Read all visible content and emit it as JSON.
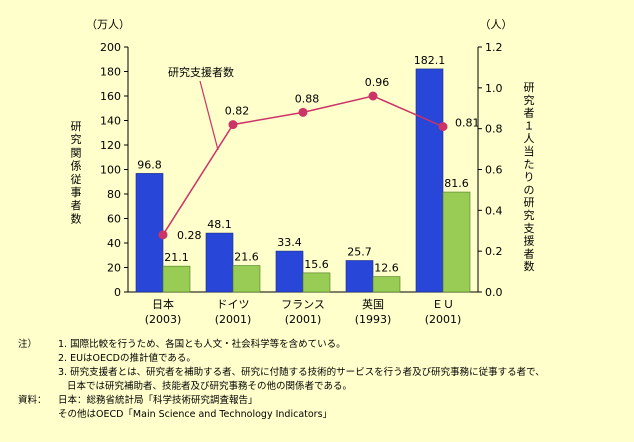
{
  "chart_data": {
    "type": "bar",
    "categories": [
      {
        "name": "日本",
        "year": "(2003)"
      },
      {
        "name": "ドイツ",
        "year": "(2001)"
      },
      {
        "name": "フランス",
        "year": "(2001)"
      },
      {
        "name": "英国",
        "year": "(1993)"
      },
      {
        "name": "ＥＵ",
        "year": "(2001)"
      }
    ],
    "series": [
      {
        "name": "",
        "type": "bar",
        "axis": "left",
        "color": "#2847d8",
        "values": [
          96.8,
          48.1,
          33.4,
          25.7,
          182.1
        ],
        "labels": [
          "96.8",
          "48.1",
          "33.4",
          "25.7",
          "182.1"
        ]
      },
      {
        "name": "",
        "type": "bar",
        "axis": "left",
        "color": "#99cc55",
        "values": [
          21.1,
          21.6,
          15.6,
          12.6,
          81.6
        ],
        "labels": [
          "21.1",
          "21.6",
          "15.6",
          "12.6",
          "81.6"
        ]
      },
      {
        "name": "研究支援者数",
        "type": "line",
        "axis": "right",
        "color": "#cc3366",
        "values": [
          0.28,
          0.82,
          0.88,
          0.96,
          0.81
        ],
        "labels": [
          "0.28",
          "0.82",
          "0.88",
          "0.96",
          "0.81"
        ]
      }
    ],
    "y_left": {
      "unit": "（万人）",
      "label": "研究関係従事者数",
      "ylim": [
        0,
        200
      ],
      "ticks": [
        "0",
        "20",
        "40",
        "60",
        "80",
        "100",
        "120",
        "140",
        "160",
        "180",
        "200"
      ]
    },
    "y_right": {
      "unit": "（人）",
      "label": "研究者１人当たりの研究支援者数",
      "ylim": [
        0,
        1.2
      ],
      "ticks": [
        "0.0",
        "0.2",
        "0.4",
        "0.6",
        "0.8",
        "1.0",
        "1.2"
      ]
    },
    "legend": {
      "text": "研究支援者数",
      "placement": "top-left"
    },
    "grid": false
  },
  "notes": [
    {
      "head": "注）",
      "text": "1. 国際比較を行うため、各国とも人文・社会科学等を含めている。"
    },
    {
      "head": "",
      "text": "2. EUはOECDの推計値である。"
    },
    {
      "head": "",
      "text": "3. 研究支援者とは、研究者を補助する者、研究に付随する技術的サービスを行う者及び研究事務に従事する者で、"
    },
    {
      "head": "",
      "text": "   日本では研究補助者、技能者及び研究事務その他の関係者である。"
    },
    {
      "head": "資料：",
      "text": "日本：総務省統計局「科学技術研究調査報告」"
    },
    {
      "head": "",
      "text": "その他はOECD「Main Science and Technology Indicators」"
    }
  ]
}
